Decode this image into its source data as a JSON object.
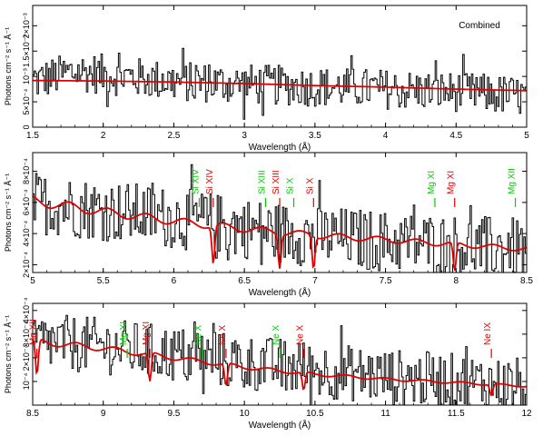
{
  "chart_data": [
    {
      "type": "line",
      "title": "",
      "annotation": "Combined",
      "xlabel": "Wavelength (Å)",
      "ylabel": "Photons cm⁻² s⁻¹ Å⁻¹",
      "xlim": [
        1.5,
        5.0
      ],
      "ylim": [
        0,
        0.0024
      ],
      "xticks": [
        1.5,
        2,
        2.5,
        3,
        3.5,
        4,
        4.5,
        5
      ],
      "xtick_labels": [
        "1.5",
        "2",
        "2.5",
        "3",
        "3.5",
        "4",
        "4.5",
        "5"
      ],
      "yticks": [
        0,
        0.0005,
        0.001,
        0.0015,
        0.002
      ],
      "ytick_labels": [
        "0",
        "5×10⁻⁴",
        "10⁻³",
        "1.5×10⁻³",
        "2×10⁻³"
      ],
      "series": [
        {
          "role": "data",
          "color": "#000000",
          "x": [
            1.5,
            5.0
          ],
          "noise_amplitude": 0.0004,
          "description_points": [
            [
              1.5,
              0.0009
            ],
            [
              1.8,
              0.0011
            ],
            [
              2.5,
              0.0009
            ],
            [
              3.5,
              0.0008
            ],
            [
              4.5,
              0.0007
            ],
            [
              5.0,
              0.0006
            ]
          ]
        },
        {
          "role": "model",
          "color": "#e00000",
          "x": [
            1.5,
            2.0,
            2.5,
            3.0,
            3.5,
            4.0,
            4.5,
            5.0
          ],
          "y": [
            0.00092,
            0.00091,
            0.00089,
            0.00086,
            0.00082,
            0.00079,
            0.00075,
            0.00072
          ]
        }
      ],
      "lines": []
    },
    {
      "type": "line",
      "title": "",
      "xlabel": "Wavelength (Å)",
      "ylabel": "Photons cm⁻² s⁻¹ Å⁻¹",
      "xlim": [
        5.0,
        8.5
      ],
      "ylim": [
        0.00015,
        0.00092
      ],
      "xticks": [
        5,
        5.5,
        6,
        6.5,
        7,
        7.5,
        8,
        8.5
      ],
      "xtick_labels": [
        "5",
        "5.5",
        "6",
        "6.5",
        "7",
        "7.5",
        "8",
        "8.5"
      ],
      "yticks": [
        0.0002,
        0.0004,
        0.0006,
        0.0008
      ],
      "ytick_labels": [
        "2×10⁻⁴",
        "4×10⁻⁴",
        "6×10⁻⁴",
        "8×10⁻⁴"
      ],
      "series": [
        {
          "role": "data",
          "color": "#000000",
          "x": [
            5.0,
            8.5
          ],
          "noise_amplitude": 0.0002,
          "description_points": [
            [
              5.0,
              0.0006
            ],
            [
              6.0,
              0.0005
            ],
            [
              6.8,
              0.0004
            ],
            [
              7.5,
              0.00035
            ],
            [
              8.5,
              0.0003
            ]
          ]
        },
        {
          "role": "model",
          "color": "#e00000",
          "x": [
            5.0,
            5.5,
            6.0,
            6.5,
            7.0,
            7.5,
            8.0,
            8.5
          ],
          "y": [
            0.00061,
            0.00054,
            0.00048,
            0.00043,
            0.00039,
            0.00036,
            0.00033,
            0.0003
          ]
        }
      ],
      "lines": [
        {
          "label": "Si XIV",
          "x": 6.18,
          "color": "#00cc00"
        },
        {
          "label": "Si XIV",
          "x": 6.28,
          "color": "#e00000"
        },
        {
          "label": "Si XIII",
          "x": 6.65,
          "color": "#00cc00"
        },
        {
          "label": "Si XIII",
          "x": 6.75,
          "color": "#e00000"
        },
        {
          "label": "Si X",
          "x": 6.85,
          "color": "#00cc00"
        },
        {
          "label": "Si X",
          "x": 6.99,
          "color": "#e00000"
        },
        {
          "label": "Mg XI",
          "x": 7.85,
          "color": "#00cc00"
        },
        {
          "label": "Mg XI",
          "x": 7.99,
          "color": "#e00000"
        },
        {
          "label": "Mg XII",
          "x": 8.42,
          "color": "#00cc00"
        }
      ]
    },
    {
      "type": "line",
      "title": "",
      "xlabel": "Wavelength (Å)",
      "ylabel": "Photons cm⁻² s⁻¹ Å⁻¹",
      "xlim": [
        8.5,
        12.0
      ],
      "ylim": [
        0.0,
        0.00043
      ],
      "xticks": [
        8.5,
        9,
        9.5,
        10,
        10.5,
        11,
        11.5,
        12
      ],
      "xtick_labels": [
        "8.5",
        "9",
        "9.5",
        "10",
        "10.5",
        "11",
        "11.5",
        "12"
      ],
      "yticks": [
        0.0001,
        0.0002,
        0.0003,
        0.0004
      ],
      "ytick_labels": [
        "10⁻⁴",
        "2×10⁻⁴",
        "3×10⁻⁴",
        "4×10⁻⁴"
      ],
      "series": [
        {
          "role": "data",
          "color": "#000000",
          "x": [
            8.5,
            12.0
          ],
          "noise_amplitude": 0.00012,
          "description_points": [
            [
              8.5,
              0.00027
            ],
            [
              9.0,
              0.00025
            ],
            [
              10.0,
              0.00018
            ],
            [
              11.0,
              0.00012
            ],
            [
              12.0,
              8e-05
            ]
          ]
        },
        {
          "role": "model",
          "color": "#e00000",
          "x": [
            8.5,
            9.0,
            9.5,
            10.0,
            10.5,
            11.0,
            11.5,
            12.0
          ],
          "y": [
            0.00027,
            0.00024,
            0.0002,
            0.00016,
            0.00013,
            0.00011,
            9.5e-05,
            8e-05
          ]
        }
      ],
      "lines": [
        {
          "label": "Mg XII",
          "x": 8.53,
          "color": "#e00000"
        },
        {
          "label": "Mg XI",
          "x": 9.17,
          "color": "#00cc00"
        },
        {
          "label": "Mg XI",
          "x": 9.33,
          "color": "#e00000"
        },
        {
          "label": "Ne X",
          "x": 9.7,
          "color": "#00cc00"
        },
        {
          "label": "Ne X",
          "x": 9.87,
          "color": "#e00000"
        },
        {
          "label": "Ne X",
          "x": 10.25,
          "color": "#00cc00"
        },
        {
          "label": "Ne X",
          "x": 10.42,
          "color": "#e00000"
        },
        {
          "label": "Ne IX",
          "x": 11.75,
          "color": "#e00000"
        }
      ]
    }
  ]
}
